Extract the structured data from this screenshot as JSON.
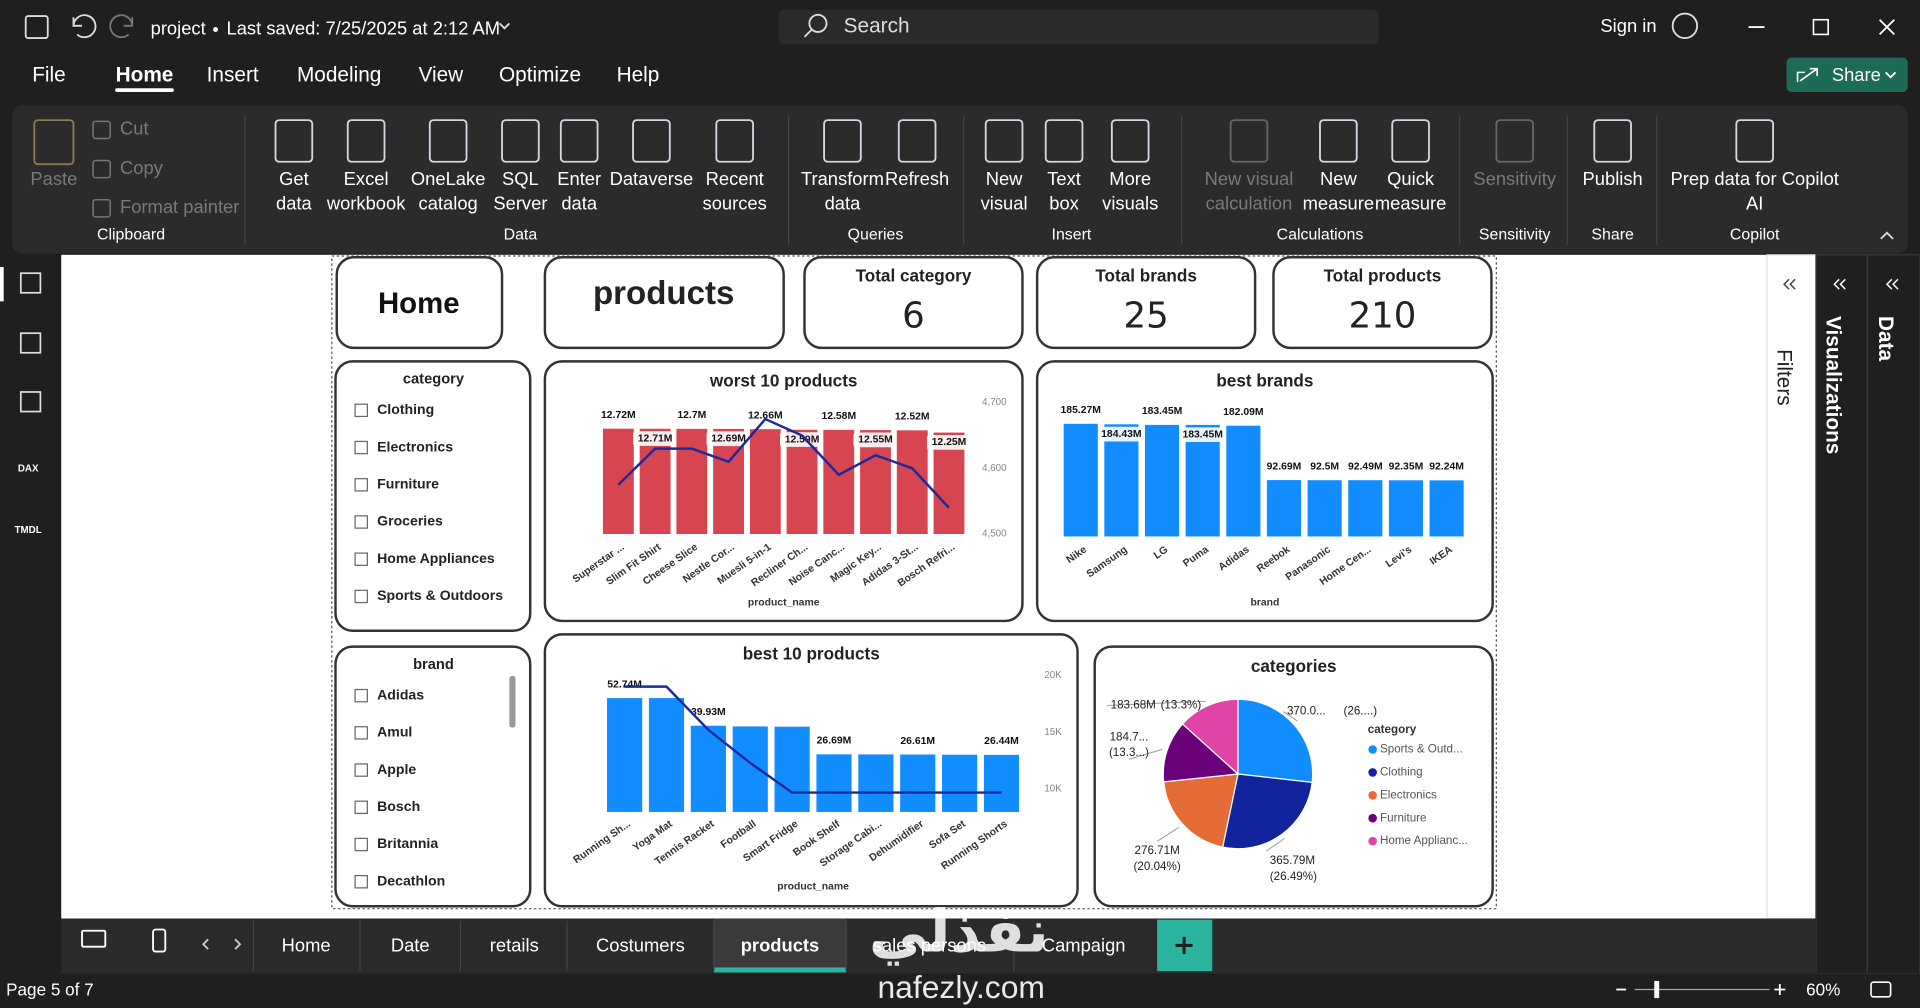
{
  "title_bar": {
    "file_name": "project",
    "saved": "Last saved: 7/25/2025 at 2:12 AM",
    "search": "Search",
    "sign_in": "Sign in"
  },
  "menu": {
    "tabs": [
      "File",
      "Home",
      "Insert",
      "Modeling",
      "View",
      "Optimize",
      "Help"
    ],
    "active": 1,
    "share": "Share"
  },
  "ribbon": {
    "groups": [
      {
        "label": "Clipboard",
        "items": [
          [
            "Paste"
          ],
          [
            "Cut"
          ],
          [
            "Copy"
          ],
          [
            "Format painter"
          ]
        ]
      },
      {
        "label": "Data",
        "items": [
          [
            "Get",
            "data"
          ],
          [
            "Excel",
            "workbook"
          ],
          [
            "OneLake",
            "catalog"
          ],
          [
            "SQL",
            "Server"
          ],
          [
            "Enter",
            "data"
          ],
          [
            "Dataverse"
          ],
          [
            "Recent",
            "sources"
          ]
        ]
      },
      {
        "label": "Queries",
        "items": [
          [
            "Transform",
            "data"
          ],
          [
            "Refresh"
          ]
        ]
      },
      {
        "label": "Insert",
        "items": [
          [
            "New",
            "visual"
          ],
          [
            "Text",
            "box"
          ],
          [
            "More",
            "visuals"
          ]
        ]
      },
      {
        "label": "Calculations",
        "items": [
          [
            "New visual",
            "calculation"
          ],
          [
            "New",
            "measure"
          ],
          [
            "Quick",
            "measure"
          ]
        ]
      },
      {
        "label": "Sensitivity",
        "items": [
          [
            "Sensitivity"
          ]
        ]
      },
      {
        "label": "Share",
        "items": [
          [
            "Publish"
          ]
        ]
      },
      {
        "label": "Copilot",
        "items": [
          [
            "Prep data for Copilot",
            "AI"
          ]
        ]
      }
    ]
  },
  "left_nav": [
    "DAX",
    "TMDL"
  ],
  "side_panes": [
    "Filters",
    "Visualizations",
    "Data"
  ],
  "report": {
    "buttons": [
      "Home",
      "products"
    ],
    "cards": [
      {
        "label": "Total category",
        "value": 6
      },
      {
        "label": "Total brands",
        "value": 25
      },
      {
        "label": "Total products",
        "value": 210
      }
    ],
    "slicers": [
      {
        "title": "category",
        "items": [
          "Clothing",
          "Electronics",
          "Furniture",
          "Groceries",
          "Home Appliances",
          "Sports & Outdoors"
        ]
      },
      {
        "title": "brand",
        "items": [
          "Adidas",
          "Amul",
          "Apple",
          "Bosch",
          "Britannia",
          "Decathlon"
        ]
      }
    ],
    "charts": [
      {
        "type": "combo",
        "title": "worst 10 products",
        "x_label": "product_name",
        "categories": [
          "Superstar ...",
          "Slim Fit Shirt",
          "Cheese Slice",
          "Nestle Cor...",
          "Muesli 5-in-1",
          "Recliner Ch...",
          "Noise Canc...",
          "Magic Key...",
          "Adidas 3-St...",
          "Bosch Refri..."
        ],
        "series": [
          {
            "type": "bar",
            "color": "#d64550",
            "values": [
              12.72,
              12.71,
              12.7,
              12.69,
              12.66,
              12.59,
              12.58,
              12.55,
              12.52,
              12.25
            ],
            "value_labels": [
              "12.72M",
              "12.71M",
              "12.7M",
              "12.69M",
              "12.66M",
              "12.59M",
              "12.58M",
              "12.55M",
              "12.52M",
              "12.25M"
            ]
          },
          {
            "type": "line",
            "color": "#1a2a9c",
            "axis": "y2",
            "values": [
              4575,
              4630,
              4630,
              4610,
              4675,
              4650,
              4590,
              4620,
              4600,
              4540
            ]
          }
        ],
        "y2lim": [
          4500,
          4720
        ],
        "y2ticks": [
          {
            "value": 4700,
            "label": "4,700"
          },
          {
            "value": 4600,
            "label": "4,600"
          },
          {
            "value": 4500,
            "label": "4,500"
          }
        ]
      },
      {
        "type": "bar",
        "title": "best brands",
        "x_label": "brand",
        "color": "#118dff",
        "categories": [
          "Nike",
          "Samsung",
          "LG",
          "Puma",
          "Adidas",
          "Reebok",
          "Panasonic",
          "Home Cen...",
          "Levi's",
          "IKEA"
        ],
        "values": [
          185.27,
          184.43,
          183.45,
          183.45,
          182.09,
          92.69,
          92.5,
          92.49,
          92.35,
          92.24
        ],
        "value_labels": [
          "185.27M",
          "184.43M",
          "183.45M",
          "183.45M",
          "182.09M",
          "92.69M",
          "92.5M",
          "92.49M",
          "92.35M",
          "92.24M"
        ]
      },
      {
        "type": "combo",
        "title": "best 10 products",
        "x_label": "product_name",
        "categories": [
          "Running Sh...",
          "Yoga Mat",
          "Tennis Racket",
          "Football",
          "Smart Fridge",
          "Book Shelf",
          "Storage Cabi...",
          "Dehumidifier",
          "Sofa Set",
          "Running Shorts"
        ],
        "series": [
          {
            "type": "bar",
            "color": "#118dff",
            "values": [
              52.74,
              52.74,
              39.93,
              39.6,
              39.5,
              26.69,
              26.65,
              26.61,
              26.5,
              26.44
            ],
            "value_labels": [
              "52.74M",
              null,
              "39.93M",
              null,
              null,
              "26.69M",
              null,
              "26.61M",
              null,
              "26.44M"
            ]
          },
          {
            "type": "line",
            "color": "#1a2a9c",
            "axis": "y2",
            "values": [
              19000,
              19000,
              15200,
              12300,
              9700,
              9700,
              9700,
              9700,
              9700,
              9700
            ]
          }
        ],
        "y2lim": [
          8000,
          21000
        ],
        "y2ticks": [
          {
            "value": 20000,
            "label": "20K"
          },
          {
            "value": 15000,
            "label": "15K"
          },
          {
            "value": 10000,
            "label": "10K"
          }
        ]
      },
      {
        "type": "pie",
        "title": "categories",
        "legend_title": "category",
        "categories": [
          "Sports & Outd...",
          "Clothing",
          "Electronics",
          "Furniture",
          "Home Applianc..."
        ],
        "colors": [
          "#118dff",
          "#12239e",
          "#e66c37",
          "#6b007b",
          "#e044a7"
        ],
        "values": [
          370.0,
          365.79,
          276.71,
          184.7,
          183.68
        ],
        "value_labels": [
          "370.0...",
          "365.79M",
          "276.71M",
          "184.7...",
          "183.68M"
        ],
        "percent_labels": [
          "(26....)",
          "(26.49%)",
          "(20.04%)",
          "(13.3...)",
          "(13.3%)"
        ]
      }
    ]
  },
  "page_tabs": {
    "tabs": [
      "Home",
      "Date",
      "retails",
      "Costumers",
      "products",
      "sales persons",
      "Campaign"
    ],
    "active": 4
  },
  "status_bar": {
    "page": "Page 5 of 7",
    "zoom": "60%"
  },
  "watermark": {
    "logo": "نفذلي",
    "site": "nafezly.com"
  }
}
